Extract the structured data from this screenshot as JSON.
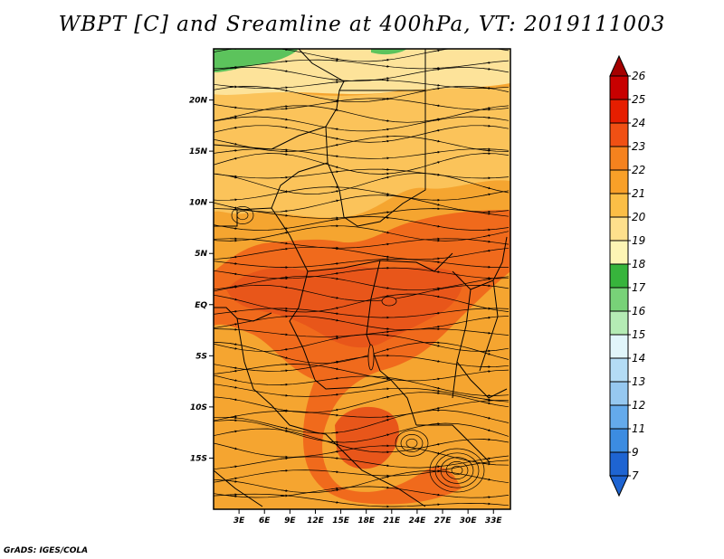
{
  "title": "WBPT [C] and Sreamline at 400hPa, VT: 2019111003",
  "credit": "GrADS: IGES/COLA",
  "map": {
    "lon_range": [
      0,
      35
    ],
    "lat_range": [
      -20,
      25
    ],
    "lon_ticks": [
      {
        "value": 3,
        "label": "3E"
      },
      {
        "value": 6,
        "label": "6E"
      },
      {
        "value": 9,
        "label": "9E"
      },
      {
        "value": 12,
        "label": "12E"
      },
      {
        "value": 15,
        "label": "15E"
      },
      {
        "value": 18,
        "label": "18E"
      },
      {
        "value": 21,
        "label": "21E"
      },
      {
        "value": 24,
        "label": "24E"
      },
      {
        "value": 27,
        "label": "27E"
      },
      {
        "value": 30,
        "label": "30E"
      },
      {
        "value": 33,
        "label": "33E"
      }
    ],
    "lat_ticks": [
      {
        "value": 20,
        "label": "20N"
      },
      {
        "value": 15,
        "label": "15N"
      },
      {
        "value": 10,
        "label": "10N"
      },
      {
        "value": 5,
        "label": "5N"
      },
      {
        "value": 0,
        "label": "EQ"
      },
      {
        "value": -5,
        "label": "5S"
      },
      {
        "value": -10,
        "label": "10S"
      },
      {
        "value": -15,
        "label": "15S"
      }
    ]
  },
  "colorbar": {
    "levels": [
      {
        "label": "26",
        "color": "#a50000"
      },
      {
        "label": "25",
        "color": "#c80000"
      },
      {
        "label": "24",
        "color": "#e61e00"
      },
      {
        "label": "23",
        "color": "#f05014"
      },
      {
        "label": "22",
        "color": "#f5821e"
      },
      {
        "label": "21",
        "color": "#f8a028"
      },
      {
        "label": "20",
        "color": "#fbbe46"
      },
      {
        "label": "19",
        "color": "#fee08c"
      },
      {
        "label": "18",
        "color": "#fdf5b4"
      },
      {
        "label": "17",
        "color": "#37b43c"
      },
      {
        "label": "16",
        "color": "#78d278"
      },
      {
        "label": "15",
        "color": "#b4ebb4"
      },
      {
        "label": "14",
        "color": "#e1f5fa"
      },
      {
        "label": "13",
        "color": "#b4dcf5"
      },
      {
        "label": "12",
        "color": "#96c8f0"
      },
      {
        "label": "11",
        "color": "#64aaeb"
      },
      {
        "label": "9",
        "color": "#3c8ce1"
      },
      {
        "label": "7",
        "color": "#1e64d2"
      }
    ],
    "top_color": "#a50000",
    "bottom_color": "#1e64d2"
  },
  "fields": {
    "background_color": "#f5a530",
    "warm_core_color": "#f06a1c",
    "hot_core_color": "#e8561a",
    "cool_band_color": "#fbc35a",
    "pale_band_color": "#fde39a",
    "green_patch_color": "#5cc35c"
  }
}
